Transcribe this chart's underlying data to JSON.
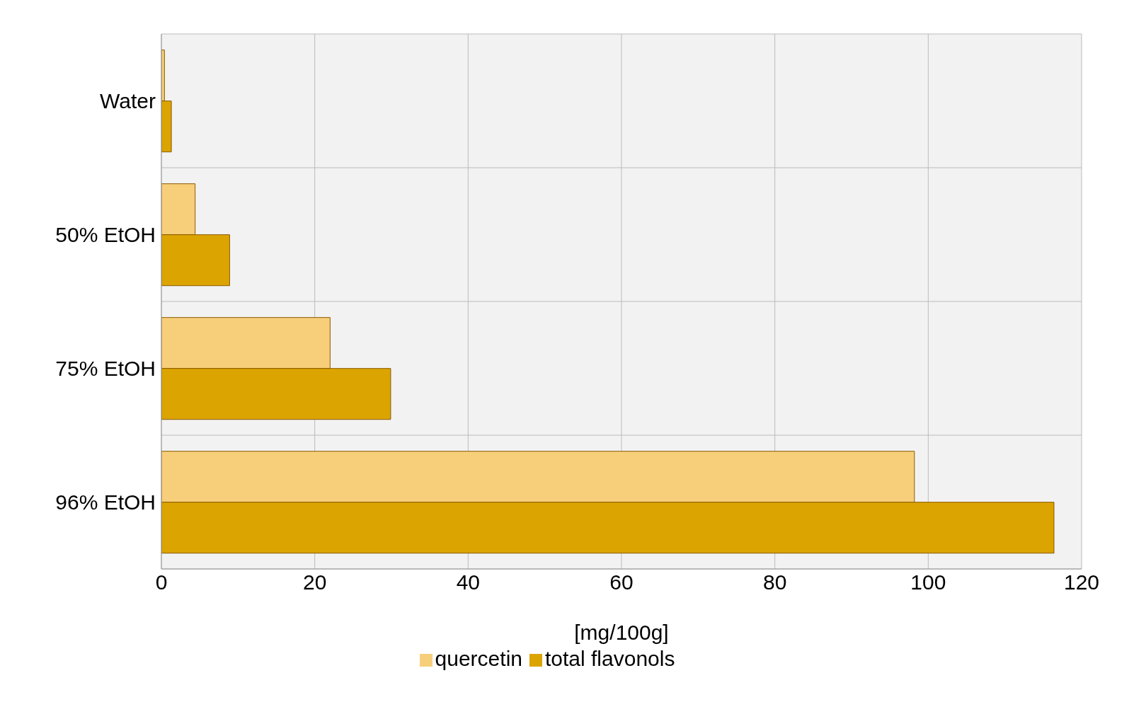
{
  "chart_data": {
    "type": "bar",
    "orientation": "horizontal",
    "xlabel": "[mg/100g]",
    "categories": [
      "Water",
      "50% EtOH",
      "75% EtOH",
      "96% EtOH"
    ],
    "series": [
      {
        "name": "quercetin",
        "color": "#f7cf7a",
        "values": [
          0.4,
          4.4,
          22,
          98.2
        ]
      },
      {
        "name": "total flavonols",
        "color": "#dba400",
        "values": [
          1.3,
          8.9,
          29.9,
          116.4
        ]
      }
    ],
    "xlim": [
      0,
      120
    ],
    "xticks": [
      0,
      20,
      40,
      60,
      80,
      100,
      120
    ],
    "grid": true,
    "legend": "bottom"
  }
}
